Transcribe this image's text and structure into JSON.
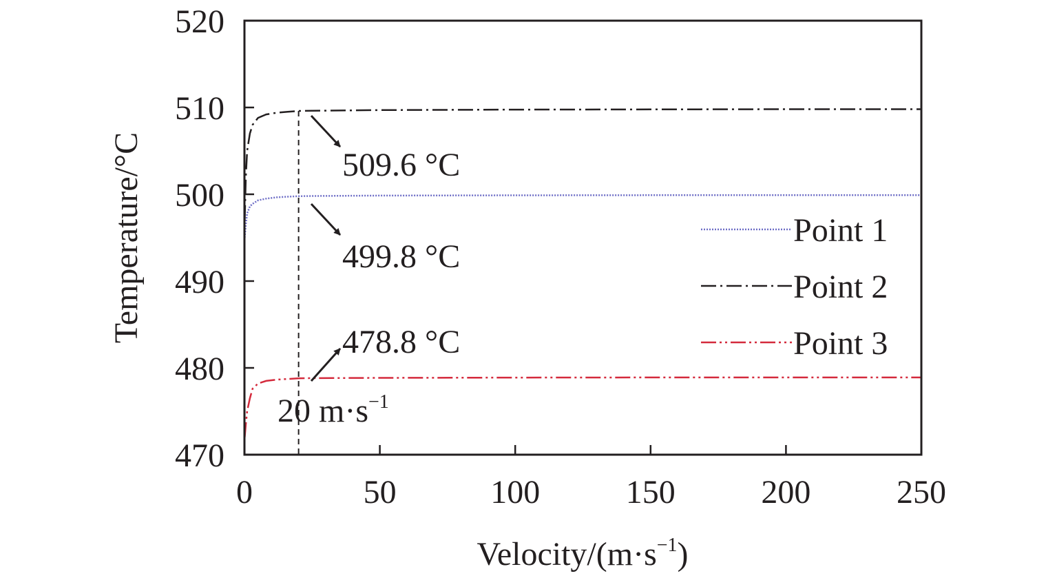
{
  "chart_data": {
    "type": "line",
    "title": "",
    "xlabel_main": "Velocity/(m·s",
    "xlabel_sup": "−1",
    "xlabel_close": ")",
    "ylabel": "Temperature/°C",
    "xlim": [
      0,
      250
    ],
    "ylim": [
      470,
      520
    ],
    "xticks": [
      0,
      50,
      100,
      150,
      200,
      250
    ],
    "yticks": [
      470,
      480,
      490,
      500,
      510,
      520
    ],
    "grid": false,
    "legend_position": "right",
    "series": [
      {
        "name": "Point 1",
        "color": "#6d6dc6",
        "dash": "dotted",
        "x": [
          0.1,
          0.5,
          1,
          2,
          3,
          5,
          8,
          12,
          16,
          20,
          25,
          50,
          100,
          150,
          200,
          250
        ],
        "y": [
          495.0,
          496.5,
          497.8,
          498.6,
          498.9,
          499.3,
          499.5,
          499.65,
          499.72,
          499.78,
          499.8,
          499.85,
          499.88,
          499.9,
          499.9,
          499.9
        ]
      },
      {
        "name": "Point 2",
        "color": "#231f20",
        "dash": "dashdot",
        "x": [
          0.1,
          0.5,
          1,
          2,
          3,
          5,
          8,
          12,
          16,
          20,
          25,
          50,
          100,
          150,
          200,
          250
        ],
        "y": [
          497.0,
          502.0,
          505.0,
          507.0,
          508.0,
          508.8,
          509.2,
          509.4,
          509.5,
          509.6,
          509.62,
          509.7,
          509.75,
          509.78,
          509.8,
          509.8
        ]
      },
      {
        "name": "Point 3",
        "color": "#d42a3c",
        "dash": "dashdotdot",
        "x": [
          0.1,
          0.5,
          1,
          2,
          3,
          5,
          8,
          12,
          16,
          20,
          25,
          50,
          100,
          150,
          200,
          250
        ],
        "y": [
          472.0,
          473.5,
          475.0,
          476.5,
          477.6,
          478.2,
          478.5,
          478.65,
          478.72,
          478.8,
          478.82,
          478.85,
          478.88,
          478.9,
          478.9,
          478.9
        ]
      }
    ],
    "annotations": [
      {
        "text": "509.6 °C",
        "x": 20,
        "y": 509.6
      },
      {
        "text": "499.8 °C",
        "x": 20,
        "y": 499.8
      },
      {
        "text": "478.8 °C",
        "x": 20,
        "y": 478.8
      }
    ],
    "vline": {
      "x": 20,
      "label_main": "20 m·s",
      "label_sup": "−1"
    }
  }
}
